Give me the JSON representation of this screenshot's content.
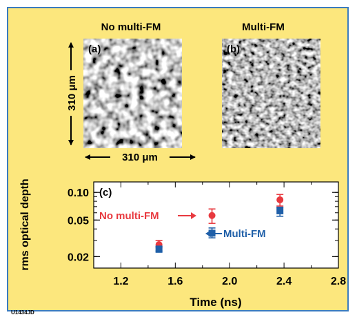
{
  "figure": {
    "panel_a": {
      "heading": "No multi-FM",
      "label": "(a)"
    },
    "panel_b": {
      "heading": "Multi-FM",
      "label": "(b)"
    },
    "scale_vertical": "310 μm",
    "scale_horizontal": "310 μm",
    "panel_c_label": "(c)",
    "annotation_red": "No multi-FM",
    "annotation_blue": "Multi-FM",
    "figure_id": "U1434JD"
  },
  "colors": {
    "background": "#fce77d",
    "border": "#3a7bbf",
    "red_series": "#e8393f",
    "blue_series": "#1f5fa8"
  },
  "chart_data": {
    "type": "scatter",
    "xlabel": "Time (ns)",
    "ylabel": "rms optical depth",
    "xlim": [
      1.0,
      2.8
    ],
    "ylim": [
      0.015,
      0.13
    ],
    "yscale": "log",
    "xticks": [
      "1.2",
      "1.6",
      "2.0",
      "2.4",
      "2.8"
    ],
    "yticks": [
      "0.10",
      "0.05",
      "0.02"
    ],
    "series": [
      {
        "name": "No multi-FM",
        "color": "#e8393f",
        "points": [
          {
            "x": 1.48,
            "y": 0.027,
            "err": [
              0.025,
              0.03
            ]
          },
          {
            "x": 1.87,
            "y": 0.056,
            "err": [
              0.046,
              0.066
            ]
          },
          {
            "x": 2.37,
            "y": 0.083,
            "err": [
              0.071,
              0.095
            ]
          }
        ]
      },
      {
        "name": "Multi-FM",
        "color": "#1f5fa8",
        "points": [
          {
            "x": 1.48,
            "y": 0.024,
            "err": [
              0.023,
              0.026
            ]
          },
          {
            "x": 1.87,
            "y": 0.036,
            "err": [
              0.032,
              0.041
            ]
          },
          {
            "x": 2.37,
            "y": 0.063,
            "err": [
              0.055,
              0.069
            ]
          }
        ]
      }
    ]
  }
}
